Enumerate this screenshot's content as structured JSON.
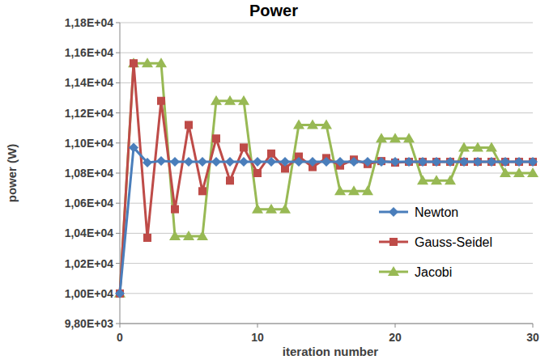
{
  "chart_data": {
    "type": "line",
    "title": "Power",
    "x_label": "iteration number",
    "y_label": "power (W)",
    "x": [
      0,
      1,
      2,
      3,
      4,
      5,
      6,
      7,
      8,
      9,
      10,
      11,
      12,
      13,
      14,
      15,
      16,
      17,
      18,
      19,
      20,
      21,
      22,
      23,
      24,
      25,
      26,
      27,
      28,
      29,
      30
    ],
    "xlim": [
      0,
      30
    ],
    "xticks": [
      0,
      10,
      20,
      30
    ],
    "ylim": [
      9800,
      11800
    ],
    "yticks": [
      {
        "value": 9800,
        "label": "9,80E+03"
      },
      {
        "value": 10000,
        "label": "1,00E+04"
      },
      {
        "value": 10200,
        "label": "1,02E+04"
      },
      {
        "value": 10400,
        "label": "1,04E+04"
      },
      {
        "value": 10600,
        "label": "1,06E+04"
      },
      {
        "value": 10800,
        "label": "1,08E+04"
      },
      {
        "value": 11000,
        "label": "1,10E+04"
      },
      {
        "value": 11200,
        "label": "1,12E+04"
      },
      {
        "value": 11400,
        "label": "1,14E+04"
      },
      {
        "value": 11600,
        "label": "1,16E+04"
      },
      {
        "value": 11800,
        "label": "1,18E+04"
      }
    ],
    "grid": true,
    "legend": "right",
    "series": [
      {
        "name": "Newton",
        "color": "#4a7ebb",
        "marker": "diamond",
        "values": [
          10000,
          10970,
          10870,
          10880,
          10875,
          10875,
          10875,
          10875,
          10875,
          10875,
          10875,
          10875,
          10875,
          10875,
          10875,
          10875,
          10875,
          10875,
          10875,
          10875,
          10875,
          10875,
          10875,
          10875,
          10875,
          10875,
          10875,
          10875,
          10875,
          10875,
          10875
        ]
      },
      {
        "name": "Gauss-Seidel",
        "color": "#be4b48",
        "marker": "square",
        "values": [
          10000,
          11530,
          10370,
          11280,
          10560,
          11120,
          10680,
          11030,
          10750,
          10970,
          10800,
          10930,
          10830,
          10910,
          10840,
          10900,
          10850,
          10890,
          10860,
          10880,
          10870,
          10875,
          10875,
          10875,
          10875,
          10875,
          10875,
          10875,
          10875,
          10875,
          10875
        ]
      },
      {
        "name": "Jacobi",
        "color": "#98b954",
        "marker": "triangle",
        "values": [
          10000,
          11530,
          11530,
          11530,
          10380,
          10380,
          10380,
          11280,
          11280,
          11280,
          10560,
          10560,
          10560,
          11120,
          11120,
          11120,
          10680,
          10680,
          10680,
          11030,
          11030,
          11030,
          10750,
          10750,
          10750,
          10970,
          10970,
          10970,
          10800,
          10800,
          10800
        ]
      }
    ]
  }
}
